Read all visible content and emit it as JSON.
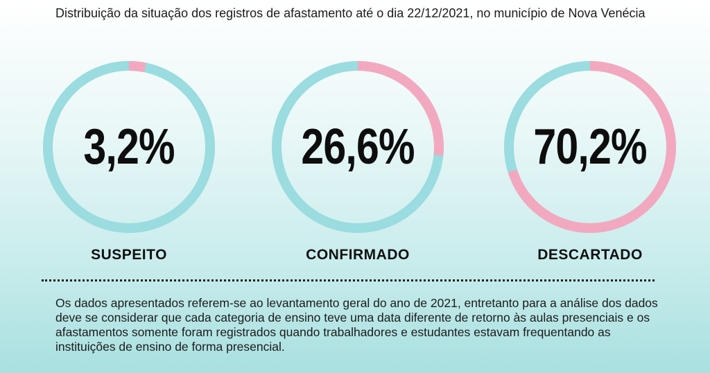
{
  "title": "Distribuição da situação dos registros de afastamento até o dia 22/12/2021, no município de Nova Venécia",
  "colors": {
    "track": "#9adcdf",
    "highlight": "#f2a9bf"
  },
  "chart_data": {
    "type": "pie",
    "title": "Distribuição da situação dos registros de afastamento até o dia 22/12/2021, no município de Nova Venécia",
    "categories": [
      "SUSPEITO",
      "CONFIRMADO",
      "DESCARTADO"
    ],
    "values": [
      3.2,
      26.6,
      70.2
    ],
    "labels": [
      "3,2%",
      "26,6%",
      "70,2%"
    ]
  },
  "note": "Os dados apresentados referem-se ao levantamento geral do ano de 2021, entretanto para a análise dos dados deve se considerar que cada categoria de ensino teve uma data diferente de retorno às aulas presenciais e os afastamentos somente foram registrados quando trabalhadores e estudantes estavam frequentando as instituições de ensino de forma presencial."
}
